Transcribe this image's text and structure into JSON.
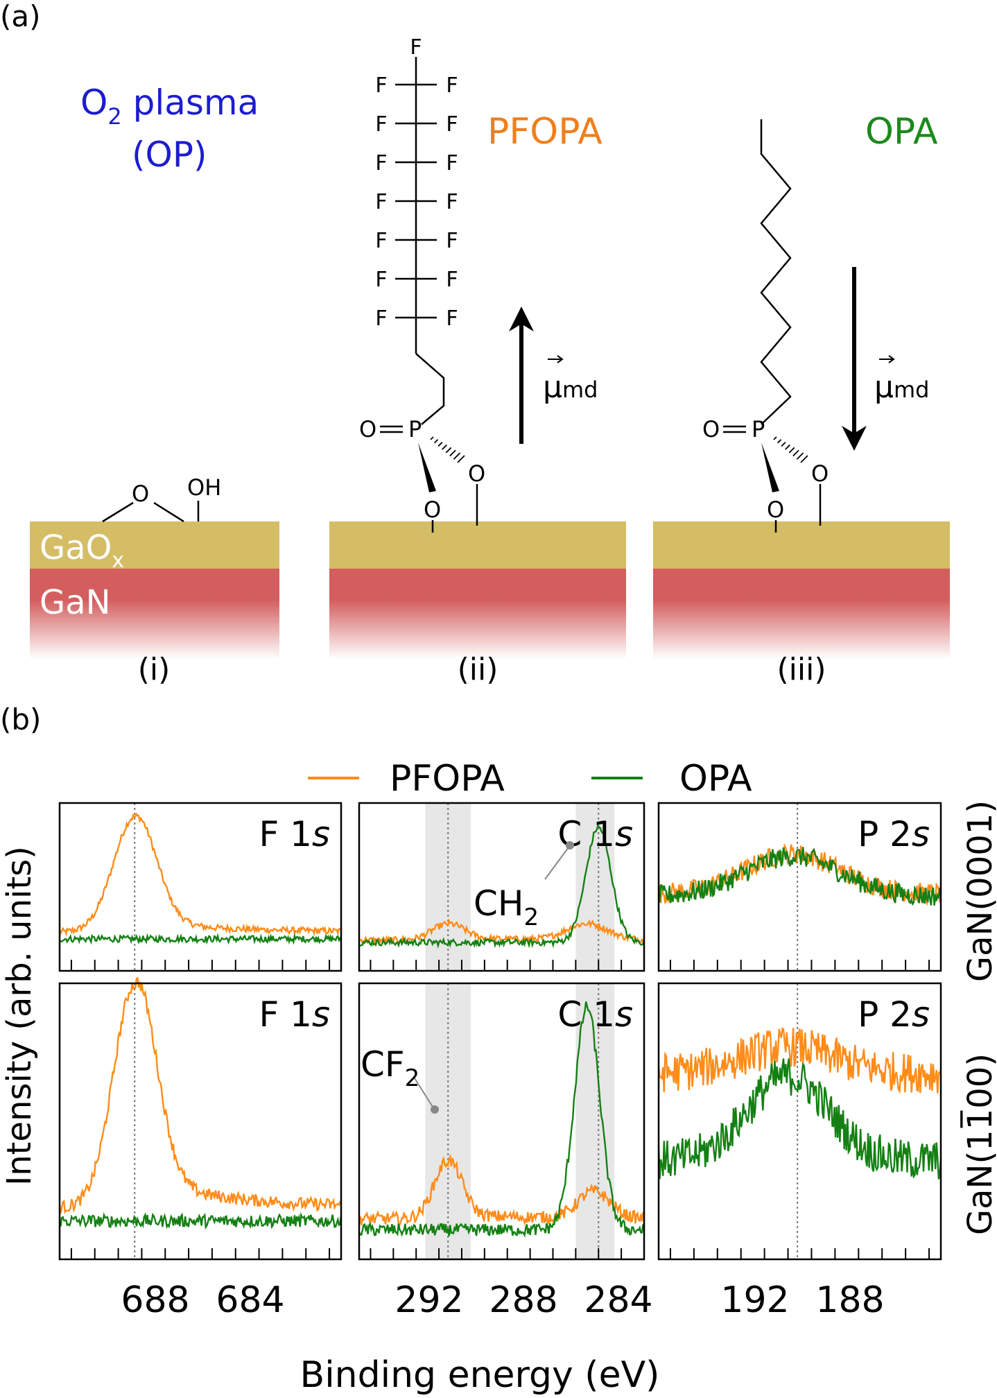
{
  "part_a": {
    "label": "(a)",
    "op_title_main": "O",
    "op_title_sub": "2",
    "op_title_rest": " plasma",
    "op_title_line2": "(OP)",
    "pfopa_title": "PFOPA",
    "opa_title": "OPA",
    "dipole_symbol": "μ",
    "dipole_sub": "md",
    "layers": {
      "gaox_main": "GaO",
      "gaox_sub": "x",
      "gan": "GaN"
    },
    "atoms": {
      "O": "O",
      "OH": "OH",
      "F": "F",
      "P": "P"
    },
    "sublabels": [
      "(i)",
      "(ii)",
      "(iii)"
    ],
    "colors": {
      "op": "#1c1ccf",
      "pfopa": "#f07f1a",
      "opa": "#1b8a1b",
      "gaox": "#d4bd65",
      "gan": "#d45e5e"
    }
  },
  "part_b": {
    "label": "(b)",
    "legend": [
      {
        "name": "PFOPA",
        "color": "#ff8c1a"
      },
      {
        "name": "OPA",
        "color": "#148014"
      }
    ],
    "ylabel": "Intensity (arb. units)",
    "xlabel": "Binding energy (eV)",
    "row_labels": [
      "GaN(0001)",
      "GaN(11̅00)"
    ],
    "panel_titles": {
      "f1s": {
        "main": "F 1",
        "italic": "s"
      },
      "c1s": {
        "main": "C 1",
        "italic": "s"
      },
      "p2s": {
        "main": "P 2",
        "italic": "s"
      }
    },
    "annotations": {
      "ch2_main": "CH",
      "ch2_sub": "2",
      "cf2_main": "CF",
      "cf2_sub": "2"
    },
    "xticks": {
      "f1s": [
        "688",
        "684"
      ],
      "c1s": [
        "292",
        "288",
        "284"
      ],
      "p2s": [
        "192",
        "188"
      ]
    }
  },
  "chart_data": {
    "type": "line",
    "xlabel": "Binding energy (eV)",
    "ylabel": "Intensity (arb. units)",
    "x_reversed": true,
    "panels": [
      {
        "row": "GaN(0001)",
        "region": "F 1s",
        "xlim": [
          691.5,
          679.5
        ],
        "ref_line": 688.3,
        "series": [
          {
            "name": "PFOPA",
            "peaks": [
              [
                688.3,
                1.0,
                0.9
              ]
            ],
            "baseline": 0.12,
            "tail": 0.1
          },
          {
            "name": "OPA",
            "peaks": [],
            "baseline": 0.06,
            "tail": 0.0
          }
        ]
      },
      {
        "row": "GaN(0001)",
        "region": "C 1s",
        "xlim": [
          295.5,
          283.0
        ],
        "ref_line": 291.6,
        "ref_line_2": 285.0,
        "shaded": [
          [
            292.6,
            290.6
          ],
          [
            286.0,
            284.3
          ]
        ],
        "series": [
          {
            "name": "PFOPA",
            "peaks": [
              [
                291.6,
                0.14,
                0.7
              ],
              [
                285.5,
                0.14,
                0.9
              ]
            ],
            "baseline": 0.05,
            "tail": 0.02
          },
          {
            "name": "OPA",
            "peaks": [
              [
                285.0,
                1.0,
                0.55
              ]
            ],
            "baseline": 0.03,
            "tail": 0.0
          }
        ]
      },
      {
        "row": "GaN(0001)",
        "region": "P 2s",
        "xlim": [
          197.5,
          185.5
        ],
        "ref_line": 191.6,
        "series": [
          {
            "name": "PFOPA",
            "peaks": [
              [
                191.8,
                0.35,
                2.0
              ]
            ],
            "baseline": 0.45,
            "tail": 0.0
          },
          {
            "name": "OPA",
            "peaks": [
              [
                191.8,
                0.35,
                2.0
              ]
            ],
            "baseline": 0.43,
            "tail": 0.0
          }
        ]
      },
      {
        "row": "GaN(11-00)",
        "region": "F 1s",
        "xlim": [
          691.5,
          679.5
        ],
        "ref_line": 688.3,
        "series": [
          {
            "name": "PFOPA",
            "peaks": [
              [
                688.3,
                1.0,
                0.9
              ]
            ],
            "baseline": 0.12,
            "tail": 0.14
          },
          {
            "name": "OPA",
            "peaks": [],
            "baseline": 0.06,
            "tail": 0.0
          }
        ]
      },
      {
        "row": "GaN(11-00)",
        "region": "C 1s",
        "xlim": [
          295.5,
          283.0
        ],
        "ref_line": 291.6,
        "ref_line_2": 285.0,
        "shaded": [
          [
            292.6,
            290.6
          ],
          [
            286.0,
            284.3
          ]
        ],
        "series": [
          {
            "name": "PFOPA",
            "peaks": [
              [
                291.6,
                0.26,
                0.6
              ],
              [
                285.2,
                0.12,
                0.7
              ]
            ],
            "baseline": 0.07,
            "tail": 0.02
          },
          {
            "name": "OPA",
            "peaks": [
              [
                285.5,
                1.0,
                0.55
              ]
            ],
            "baseline": 0.02,
            "tail": 0.0
          }
        ]
      },
      {
        "row": "GaN(11-00)",
        "region": "P 2s",
        "xlim": [
          197.5,
          185.5
        ],
        "ref_line": 191.6,
        "series": [
          {
            "name": "PFOPA",
            "peaks": [
              [
                192.0,
                0.12,
                2.0
              ]
            ],
            "baseline": 0.72,
            "tail": 0.0
          },
          {
            "name": "OPA",
            "peaks": [
              [
                192.0,
                0.38,
                1.7
              ]
            ],
            "baseline": 0.33,
            "tail": 0.0
          }
        ]
      }
    ]
  }
}
